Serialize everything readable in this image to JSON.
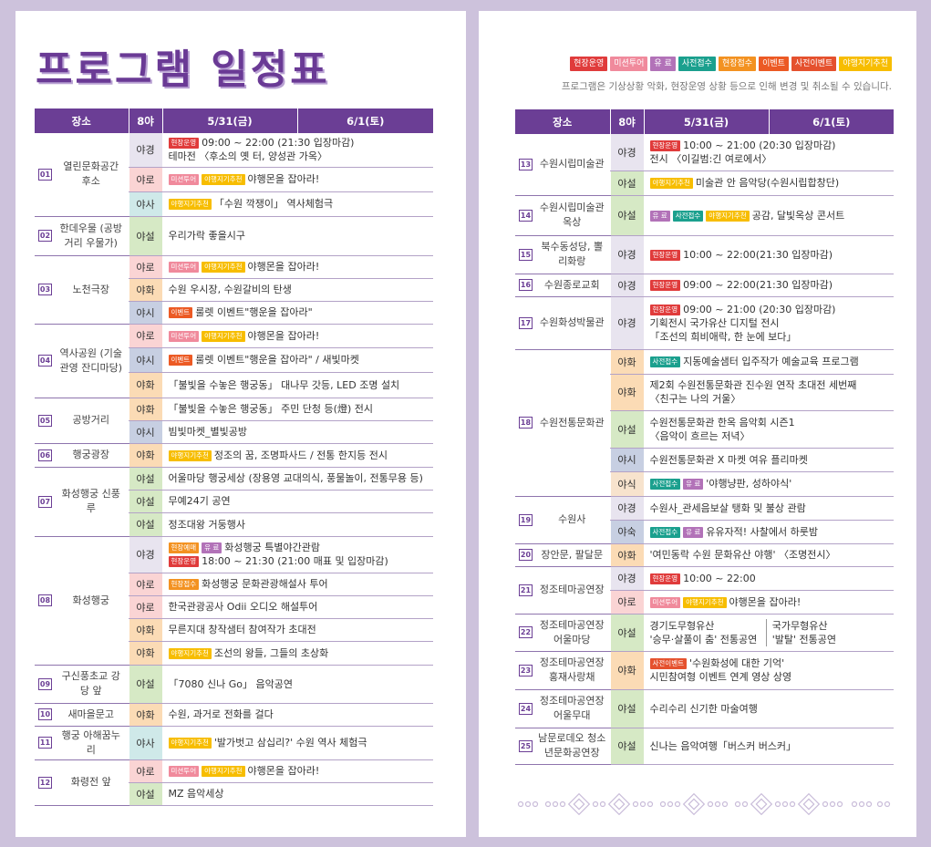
{
  "title": "프로그램 일정표",
  "legend": {
    "onsite_op": "현장운영",
    "mission_tour": "미션투어",
    "paid": "유 료",
    "pre_accept": "사전접수",
    "onsite_accept": "현장접수",
    "event": "이벤트",
    "pre_event": "사전이벤트",
    "recommend": "야행지기추천"
  },
  "notice": "프로그램은 기상상황 악화, 현장운영 상황 등으로 인해 변경 및 취소될 수 있습니다.",
  "headers": {
    "place": "장소",
    "night8": "8야",
    "day1": "5/31(금)",
    "day2": "6/1(토)"
  },
  "times": {
    "ya_gyeong": "야경",
    "ya_ro": "야로",
    "ya_sa": "야사",
    "ya_seol": "야설",
    "ya_hwa": "야화",
    "ya_si": "야시",
    "ya_sik": "야식",
    "ya_suk": "야숙"
  },
  "left": {
    "p01": {
      "num": "01",
      "name": "열린문화공간 후소"
    },
    "p01_r1": {
      "text1": "09:00 ~ 22:00 (21:30 입장마감)",
      "text2": "테마전 〈후소의 옛 터, 양성관 가옥〉"
    },
    "p01_r2": "야행몬을 잡아라!",
    "p01_r3": "「수원 깍쟁이」 역사체험극",
    "p02": {
      "num": "02",
      "name": "한데우물 (공방거리 우물가)"
    },
    "p02_r1": "우리가락 좋을시구",
    "p03": {
      "num": "03",
      "name": "노천극장"
    },
    "p03_r1": "야행몬을 잡아라!",
    "p03_r2": "수원 우시장, 수원갈비의 탄생",
    "p03_r3": "룰렛 이벤트\"행운을 잡아라\"",
    "p04": {
      "num": "04",
      "name": "역사공원 (기술관영 잔디마당)"
    },
    "p04_r1": "야행몬을 잡아라!",
    "p04_r2": "룰렛 이벤트\"행운을 잡아라\" / 새빛마켓",
    "p04_r3": "「불빛을 수놓은 행궁동」 대나무 갓등, LED 조명 설치",
    "p05": {
      "num": "05",
      "name": "공방거리"
    },
    "p05_r1": "「불빛을 수놓은 행궁동」 주민 단청 등(燈) 전시",
    "p05_r2": "빔빛마켓_별빛공방",
    "p06": {
      "num": "06",
      "name": "행궁광장"
    },
    "p06_r1": "정조의 꿈, 조명파사드 / 전통 한지등 전시",
    "p07": {
      "num": "07",
      "name": "화성행궁 신풍루"
    },
    "p07_r1": "어울마당 행궁세상 (장용영 교대의식, 풍물놀이, 전통무용 등)",
    "p07_r2": "무예24기 공연",
    "p07_r3": "정조대왕 거둥행사",
    "p08": {
      "num": "08",
      "name": "화성행궁"
    },
    "p08_r1": {
      "badge": "현장예매",
      "text1": "화성행궁 특별야간관람",
      "text2": "18:00 ~ 21:30 (21:00 매표 및 입장마감)"
    },
    "p08_r2": "화성행궁 문화관광해설사 투어",
    "p08_r3": "한국관광공사 Odii 오디오 해설투어",
    "p08_r4": "무른지대 창작샘터 참여작가 초대전",
    "p08_r5": "조선의 왕들, 그들의 초상화",
    "p09": {
      "num": "09",
      "name": "구신풍초교 강당 앞"
    },
    "p09_r1": "「7080 신나 Go」 음악공연",
    "p10": {
      "num": "10",
      "name": "새마을문고"
    },
    "p10_r1": "수원, 과거로 전화를 걸다",
    "p11": {
      "num": "11",
      "name": "행궁 아해꿈누리"
    },
    "p11_r1": "'발가벗고 삼십리?' 수원 역사 체험극",
    "p12": {
      "num": "12",
      "name": "화령전 앞"
    },
    "p12_r1": "야행몬을 잡아라!",
    "p12_r2": "MZ 음악세상"
  },
  "right": {
    "p13": {
      "num": "13",
      "name": "수원시립미술관"
    },
    "p13_r1": {
      "text1": "10:00 ~ 21:00 (20:30 입장마감)",
      "text2": "전시 〈이길범:긴 여로에서〉"
    },
    "p13_r2": "미술관 안 음악당(수원시립합창단)",
    "p14": {
      "num": "14",
      "name": "수원시립미술관 옥상"
    },
    "p14_r1": "공감, 달빛옥상 콘서트",
    "p15": {
      "num": "15",
      "name": "북수동성당, 뽈리화랑"
    },
    "p15_r1": "10:00 ~ 22:00(21:30 입장마감)",
    "p16": {
      "num": "16",
      "name": "수원종로교회"
    },
    "p16_r1": "09:00 ~ 22:00(21:30 입장마감)",
    "p17": {
      "num": "17",
      "name": "수원화성박물관"
    },
    "p17_r1": {
      "text1": "09:00 ~ 21:00 (20:30 입장마감)",
      "text2": "기획전시 국가유산 디지털 전시",
      "text3": "「조선의 희비애락, 한 눈에 보다」"
    },
    "p18": {
      "num": "18",
      "name": "수원전통문화관"
    },
    "p18_r1": "지동예술샘터 입주작가 예술교육 프로그램",
    "p18_r2": {
      "text1": "제2회 수원전통문화관 진수원 연작 초대전 세번째",
      "text2": "〈친구는 나의 거울〉"
    },
    "p18_r3": {
      "text1": "수원전통문화관 한옥 음악회 시즌1",
      "text2": "〈음악이 흐르는 저녁〉"
    },
    "p18_r4": "수원전통문화관 X 마켓 여유 플리마켓",
    "p18_r5": "'야행냥판, 성하야식'",
    "p19": {
      "num": "19",
      "name": "수원사"
    },
    "p19_r1": "수원사_관세음보살 탱화 및 불상 관람",
    "p19_r2": "유유자적! 사찰에서 하룻밤",
    "p20": {
      "num": "20",
      "name": "장안문, 팔달문"
    },
    "p20_r1": "'여민동락 수원 문화유산 야행' 〈조명전시〉",
    "p21": {
      "num": "21",
      "name": "정조테마공연장"
    },
    "p21_r1": "10:00 ~ 22:00",
    "p21_r2": "야행몬을 잡아라!",
    "p22": {
      "num": "22",
      "name": "정조테마공연장 어울마당"
    },
    "p22_r1": {
      "a1": "경기도무형유산",
      "a2": "'승무·살풀이 춤' 전통공연",
      "b1": "국가무형유산",
      "b2": "'발탈' 전통공연"
    },
    "p23": {
      "num": "23",
      "name": "정조테마공연장 홍재사랑채"
    },
    "p23_r1": {
      "text1": "'수원화성에 대한 기억'",
      "text2": "시민참여형 이벤트 연계 영상 상영"
    },
    "p24": {
      "num": "24",
      "name": "정조테마공연장 어울무대"
    },
    "p24_r1": "수리수리 신기한 마술여행",
    "p25": {
      "num": "25",
      "name": "남문로데오 청소년문화공연장"
    },
    "p25_r1": "신나는 음악여행「버스커 버스커」"
  }
}
